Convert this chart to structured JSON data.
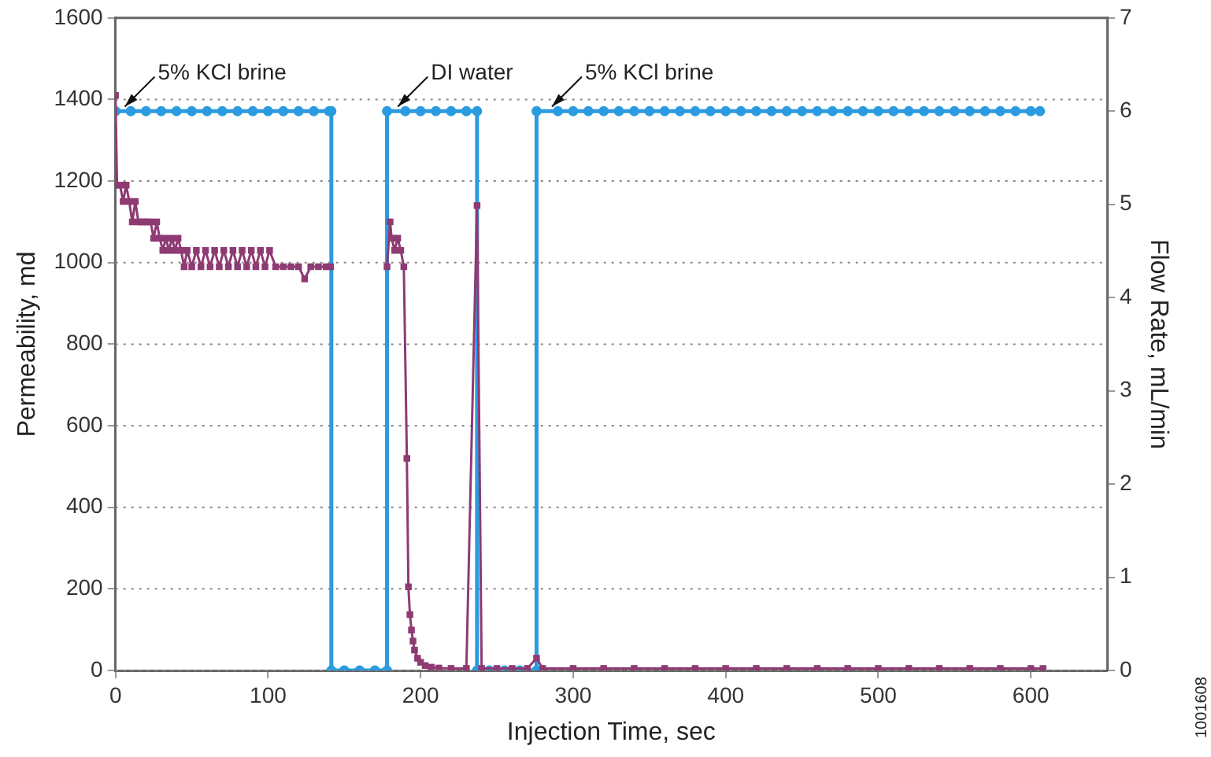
{
  "chart_data": {
    "type": "line",
    "xlabel": "Injection Time, sec",
    "ylabel": "Permeability, md",
    "y2label": "Flow Rate, mL/min",
    "xlim": [
      0,
      650
    ],
    "xticks": [
      0,
      100,
      200,
      300,
      400,
      500,
      600
    ],
    "ylim": [
      0,
      1600
    ],
    "yticks": [
      0,
      200,
      400,
      600,
      800,
      1000,
      1200,
      1400,
      1600
    ],
    "y2lim": [
      0,
      7
    ],
    "y2ticks": [
      0,
      1,
      2,
      3,
      4,
      5,
      6,
      7
    ],
    "grid": "y",
    "legend": false,
    "line_style": "solid",
    "series": [
      {
        "axis": "y2",
        "marker": "circle",
        "color": "#2b9be0",
        "x": [
          0,
          10,
          20,
          30,
          40,
          50,
          60,
          70,
          80,
          90,
          100,
          110,
          120,
          130,
          140,
          141.5,
          141.5,
          150,
          160,
          170,
          178,
          178,
          190,
          200,
          210,
          220,
          230,
          237,
          237,
          245,
          255,
          265,
          276,
          276,
          290,
          300,
          310,
          320,
          330,
          340,
          350,
          360,
          370,
          380,
          390,
          400,
          410,
          420,
          430,
          440,
          450,
          460,
          470,
          480,
          490,
          500,
          510,
          520,
          530,
          540,
          550,
          560,
          570,
          580,
          590,
          600,
          606
        ],
        "values": [
          6,
          6,
          6,
          6,
          6,
          6,
          6,
          6,
          6,
          6,
          6,
          6,
          6,
          6,
          6,
          6,
          0,
          0,
          0,
          0,
          0,
          6,
          6,
          6,
          6,
          6,
          6,
          6,
          0,
          0,
          0,
          0,
          0,
          6,
          6,
          6,
          6,
          6,
          6,
          6,
          6,
          6,
          6,
          6,
          6,
          6,
          6,
          6,
          6,
          6,
          6,
          6,
          6,
          6,
          6,
          6,
          6,
          6,
          6,
          6,
          6,
          6,
          6,
          6,
          6,
          6,
          6
        ]
      },
      {
        "marker": "square",
        "color": "#8e3a73",
        "x": [
          0,
          1,
          3,
          5,
          7,
          9,
          11,
          13,
          15,
          17,
          19,
          21,
          23,
          25,
          27,
          29,
          31,
          33,
          35,
          37,
          39,
          41,
          43,
          45,
          47,
          50,
          53,
          56,
          59,
          62,
          65,
          68,
          71,
          74,
          77,
          80,
          83,
          86,
          89,
          92,
          95,
          98,
          101,
          105,
          110,
          115,
          120,
          124,
          128,
          133,
          138,
          141,
          160,
          178,
          180,
          181,
          183,
          185,
          187,
          189,
          191,
          192,
          193,
          194,
          195,
          196,
          198,
          200,
          203,
          207,
          212,
          220,
          230,
          237,
          240,
          250,
          260,
          270,
          276,
          280,
          300,
          320,
          340,
          360,
          380,
          400,
          420,
          440,
          460,
          480,
          500,
          520,
          540,
          560,
          580,
          600,
          608
        ],
        "values": [
          1410,
          1190,
          1190,
          1150,
          1190,
          1150,
          1100,
          1150,
          1100,
          1100,
          1100,
          1100,
          1100,
          1060,
          1100,
          1060,
          1030,
          1060,
          1030,
          1060,
          1030,
          1060,
          1030,
          990,
          1030,
          990,
          1030,
          990,
          1030,
          990,
          1030,
          990,
          1030,
          990,
          1030,
          990,
          1030,
          990,
          1030,
          990,
          1030,
          990,
          1030,
          990,
          990,
          990,
          990,
          960,
          990,
          990,
          990,
          990,
          null,
          990,
          1100,
          1060,
          1030,
          1060,
          1030,
          990,
          520,
          205,
          137,
          99,
          72,
          50,
          30,
          20,
          12,
          8,
          6,
          5,
          5,
          1140,
          5,
          5,
          5,
          5,
          30,
          5,
          5,
          5,
          5,
          5,
          5,
          5,
          5,
          5,
          5,
          5,
          5,
          5,
          5,
          5,
          5,
          5,
          5
        ]
      }
    ],
    "annotations": [
      {
        "text": "5% KCl brine",
        "x": 3,
        "y": 1371
      },
      {
        "text": "DI water",
        "x": 182,
        "y": 1371
      },
      {
        "text": "5% KCl brine",
        "x": 283,
        "y": 1371
      },
      "1001608"
    ]
  }
}
